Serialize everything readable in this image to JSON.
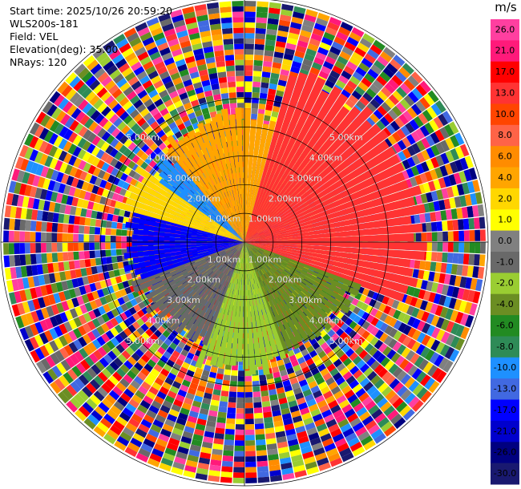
{
  "info": {
    "start_time": "Start time: 2025/10/26 20:59:20",
    "instrument": "WLS200s-181",
    "field": "Field: VEL",
    "elevation": "Elevation(deg): 35.00",
    "nrays": "NRays: 120"
  },
  "colorbar": {
    "unit": "m/s",
    "ticks": [
      "26.0",
      "21.0",
      "17.0",
      "13.0",
      "10.0",
      "8.0",
      "6.0",
      "4.0",
      "2.0",
      "1.0",
      "0.0",
      "-1.0",
      "-2.0",
      "-4.0",
      "-6.0",
      "-8.0",
      "-10.0",
      "-13.0",
      "-17.0",
      "-21.0",
      "-26.0",
      "-30.0"
    ],
    "colors": [
      "#ff3fa0",
      "#ff1a7a",
      "#ff0000",
      "#ff3333",
      "#ff4500",
      "#ff6347",
      "#ff8c00",
      "#ffa500",
      "#ffd700",
      "#ffff00",
      "#808080",
      "#696969",
      "#9acd32",
      "#6b8e23",
      "#228b22",
      "#2e8b57",
      "#1e90ff",
      "#4169e1",
      "#0000ff",
      "#0000cd",
      "#000080",
      "#191970"
    ]
  },
  "chart_data": {
    "type": "heatmap",
    "title": "",
    "range_labels": [
      "1.00km",
      "2.00km",
      "3.00km",
      "4.00km",
      "5.00km"
    ],
    "range_rings_km": [
      1,
      2,
      3,
      4,
      5
    ],
    "max_range_km": 5.0,
    "nrays": 120,
    "value_min": -30.0,
    "value_max": 26.0,
    "sectors": [
      {
        "azimuth_from": 0,
        "azimuth_to": 50,
        "range_km": 2.6,
        "value": 4.0
      },
      {
        "azimuth_from": 15,
        "azimuth_to": 110,
        "range_km": 3.6,
        "value": 13.0
      },
      {
        "azimuth_from": 110,
        "azimuth_to": 160,
        "range_km": 2.4,
        "value": -4.0
      },
      {
        "azimuth_from": 160,
        "azimuth_to": 200,
        "range_km": 2.6,
        "value": -2.0
      },
      {
        "azimuth_from": 200,
        "azimuth_to": 250,
        "range_km": 2.3,
        "value": -1.0
      },
      {
        "azimuth_from": 250,
        "azimuth_to": 285,
        "range_km": 2.4,
        "value": -17.0
      },
      {
        "azimuth_from": 285,
        "azimuth_to": 305,
        "range_km": 2.6,
        "value": 2.0
      },
      {
        "azimuth_from": 305,
        "azimuth_to": 320,
        "range_km": 2.3,
        "value": -10.0
      },
      {
        "azimuth_from": 320,
        "azimuth_to": 360,
        "range_km": 2.6,
        "value": 4.0
      }
    ]
  }
}
